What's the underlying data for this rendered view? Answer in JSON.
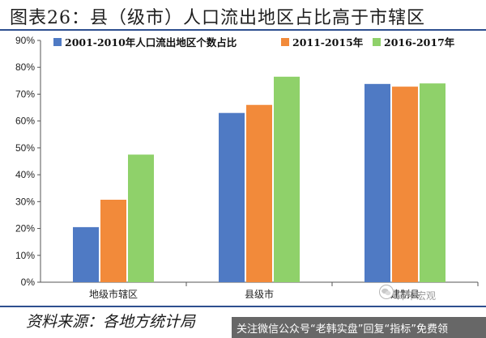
{
  "title": "图表26：县（级市）人口流出地区占比高于市辖区",
  "source_note": "资料来源：各地方统计局",
  "footer_banner": "关注微信公众号“老韩实盘”回复“指标”免费领",
  "watermark": {
    "icon": "wechat-icon",
    "label": "泽平宏观"
  },
  "colors": {
    "rule": "#2e4f8f"
  },
  "chart_data": {
    "type": "bar",
    "categories": [
      "地级市辖区",
      "县级市",
      "建制县"
    ],
    "series": [
      {
        "name": "2001-2010年人口流出地区个数占比",
        "values": [
          20.5,
          63,
          73.8
        ],
        "color": "#4f7ac4"
      },
      {
        "name": "2011-2015年",
        "values": [
          30.7,
          66,
          72.8
        ],
        "color": "#f28a3a"
      },
      {
        "name": "2016-2017年",
        "values": [
          47.5,
          76.5,
          74
        ],
        "color": "#8fd16a"
      }
    ],
    "ylim": [
      0,
      90
    ],
    "yticks": [
      "0%",
      "10%",
      "20%",
      "30%",
      "40%",
      "50%",
      "60%",
      "70%",
      "80%",
      "90%"
    ],
    "legend_position": "top",
    "grid": false
  }
}
